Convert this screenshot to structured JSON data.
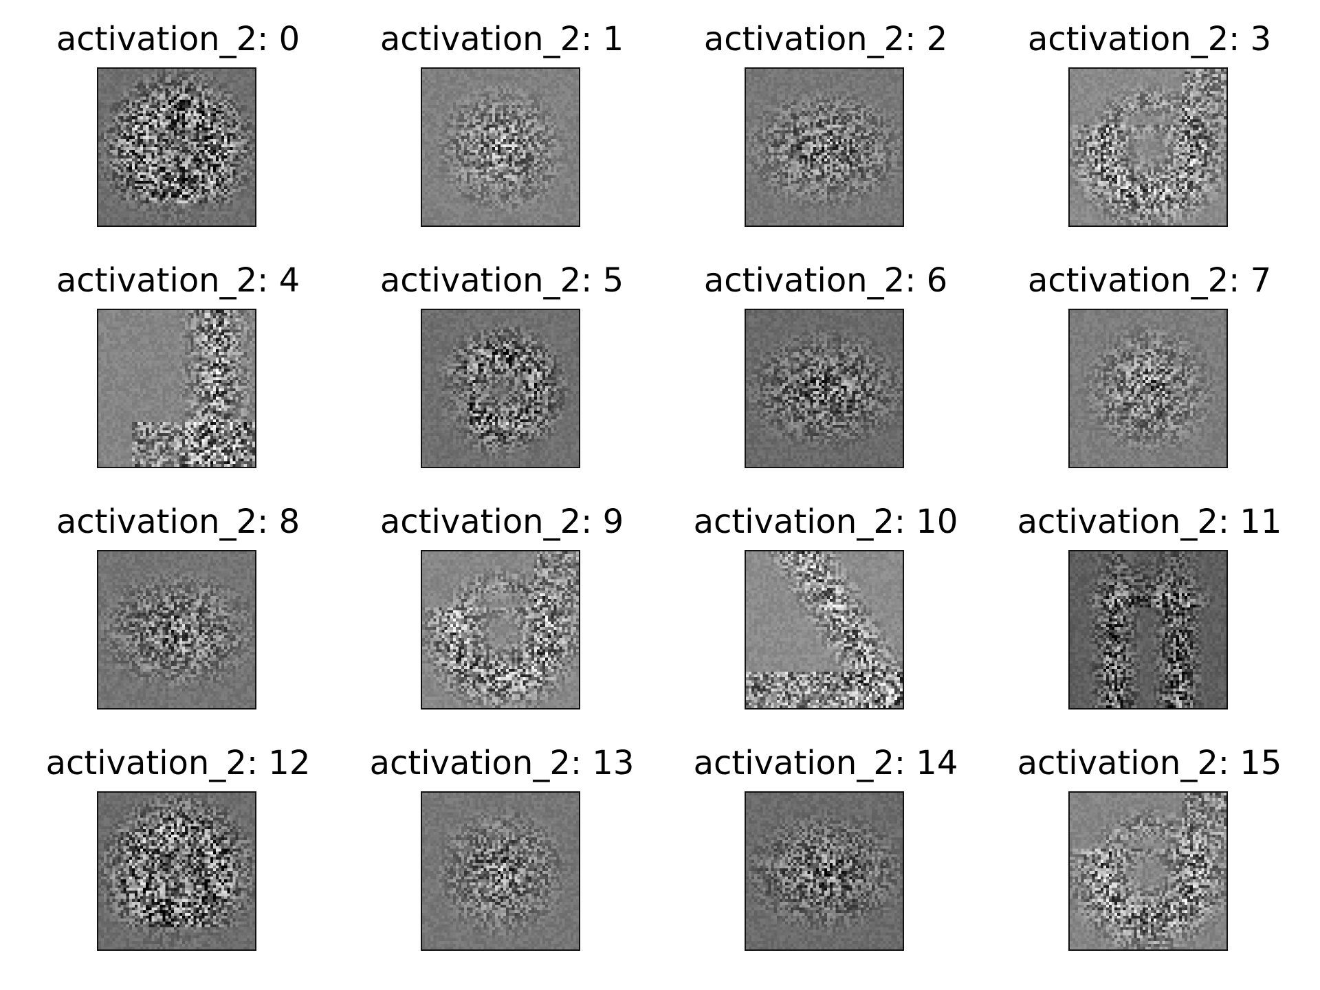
{
  "figure": {
    "panels": [
      {
        "title": "activation_2: 0",
        "base": "#6e6e6e",
        "pattern": "arch"
      },
      {
        "title": "activation_2: 1",
        "base": "#808080",
        "pattern": "blob"
      },
      {
        "title": "activation_2: 2",
        "base": "#777777",
        "pattern": "blob-wide"
      },
      {
        "title": "activation_2: 3",
        "base": "#8a8a8a",
        "pattern": "u-shape"
      },
      {
        "title": "activation_2: 4",
        "base": "#858585",
        "pattern": "right-bar"
      },
      {
        "title": "activation_2: 5",
        "base": "#6f6f6f",
        "pattern": "hook"
      },
      {
        "title": "activation_2: 6",
        "base": "#6a6a6a",
        "pattern": "blob-wide"
      },
      {
        "title": "activation_2: 7",
        "base": "#7d7d7d",
        "pattern": "blob"
      },
      {
        "title": "activation_2: 8",
        "base": "#747474",
        "pattern": "blob-wide"
      },
      {
        "title": "activation_2: 9",
        "base": "#878787",
        "pattern": "u-shape"
      },
      {
        "title": "activation_2: 10",
        "base": "#8c8c8c",
        "pattern": "diagonal"
      },
      {
        "title": "activation_2: 11",
        "base": "#5e5e5e",
        "pattern": "two-legs"
      },
      {
        "title": "activation_2: 12",
        "base": "#6c6c6c",
        "pattern": "arch"
      },
      {
        "title": "activation_2: 13",
        "base": "#767676",
        "pattern": "blob"
      },
      {
        "title": "activation_2: 14",
        "base": "#6b6b6b",
        "pattern": "blob-wide"
      },
      {
        "title": "activation_2: 15",
        "base": "#858585",
        "pattern": "u-shape"
      }
    ]
  }
}
